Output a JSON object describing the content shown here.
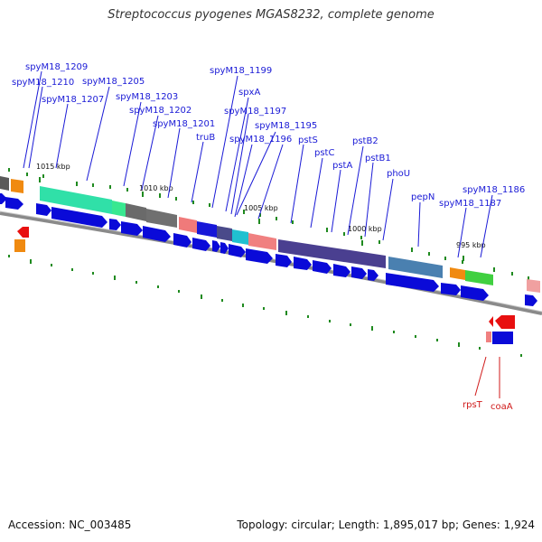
{
  "title": "Streptococcus pyogenes MGAS8232, complete genome",
  "accession": "Accession: NC_003485",
  "summary": "Topology: circular; Length: 1,895,017 bp; Genes: 1,924",
  "colors": {
    "label": "#1a1ad6",
    "label_minus": "#d01a1a",
    "cds": "#0a0ad8",
    "backbone": "#7a7a7a",
    "tick": "#1f8a1f"
  },
  "kbp_labels": [
    "1015 kbp",
    "1010 kbp",
    "1005 kbp",
    "1000 kbp",
    "995 kbp"
  ],
  "gene_labels_top": [
    "spyM18_1209",
    "spyM18_1210",
    "spyM18_1207",
    "spyM18_1205",
    "spyM18_1203",
    "spyM18_1202",
    "spyM18_1201",
    "truB",
    "spyM18_1199",
    "spxA",
    "spyM18_1197",
    "spyM18_1196",
    "spyM18_1195",
    "pstS",
    "pstC",
    "pstA",
    "pstB2",
    "pstB1",
    "phoU",
    "pepN",
    "spyM18_1187",
    "spyM18_1186"
  ],
  "gene_labels_bottom": [
    "rpsT",
    "coaA"
  ]
}
